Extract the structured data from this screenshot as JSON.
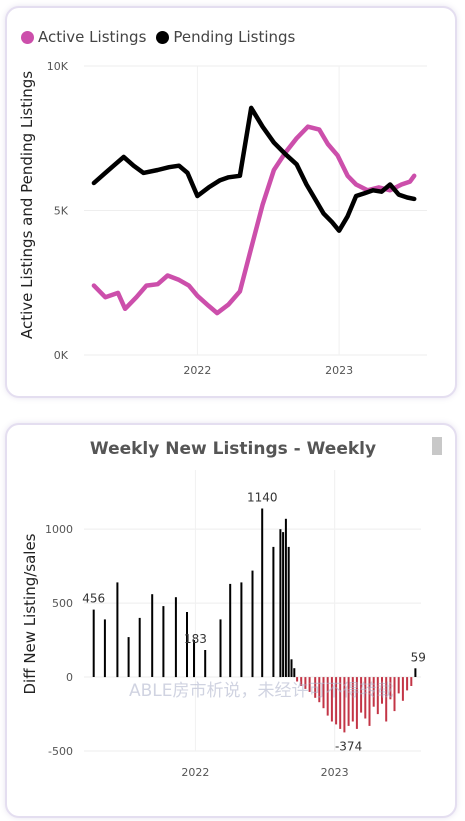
{
  "charts": [
    {
      "type": "line",
      "title": "",
      "legend": [
        {
          "name": "Active Listings",
          "color": "#cc4fab"
        },
        {
          "name": "Pending Listings",
          "color": "#000000"
        }
      ],
      "ylabel": "Active Listings and Pending Listings",
      "yticks": [
        "0K",
        "5K",
        "10K"
      ],
      "ylim": [
        0,
        10000
      ],
      "xticks": [
        {
          "label": "2022",
          "x": 2022.0
        },
        {
          "label": "2023",
          "x": 2023.0
        }
      ],
      "xlim": [
        2021.2,
        2023.62
      ],
      "series": [
        {
          "name": "Active Listings",
          "color": "#cc4fab",
          "points": [
            [
              2021.27,
              2400
            ],
            [
              2021.35,
              2000
            ],
            [
              2021.44,
              2150
            ],
            [
              2021.49,
              1600
            ],
            [
              2021.57,
              2000
            ],
            [
              2021.64,
              2400
            ],
            [
              2021.72,
              2450
            ],
            [
              2021.79,
              2750
            ],
            [
              2021.87,
              2600
            ],
            [
              2021.94,
              2400
            ],
            [
              2022.0,
              2050
            ],
            [
              2022.08,
              1700
            ],
            [
              2022.14,
              1450
            ],
            [
              2022.22,
              1750
            ],
            [
              2022.3,
              2200
            ],
            [
              2022.38,
              3700
            ],
            [
              2022.46,
              5200
            ],
            [
              2022.54,
              6400
            ],
            [
              2022.62,
              7000
            ],
            [
              2022.7,
              7500
            ],
            [
              2022.78,
              7900
            ],
            [
              2022.86,
              7800
            ],
            [
              2022.92,
              7300
            ],
            [
              2022.99,
              6900
            ],
            [
              2023.06,
              6200
            ],
            [
              2023.12,
              5900
            ],
            [
              2023.2,
              5700
            ],
            [
              2023.28,
              5800
            ],
            [
              2023.36,
              5700
            ],
            [
              2023.44,
              5900
            ],
            [
              2023.5,
              6000
            ],
            [
              2023.53,
              6200
            ]
          ]
        },
        {
          "name": "Pending Listings",
          "color": "#000000",
          "points": [
            [
              2021.27,
              5950
            ],
            [
              2021.35,
              6300
            ],
            [
              2021.42,
              6600
            ],
            [
              2021.48,
              6850
            ],
            [
              2021.55,
              6550
            ],
            [
              2021.62,
              6300
            ],
            [
              2021.72,
              6400
            ],
            [
              2021.8,
              6500
            ],
            [
              2021.87,
              6550
            ],
            [
              2021.93,
              6300
            ],
            [
              2022.0,
              5500
            ],
            [
              2022.08,
              5800
            ],
            [
              2022.16,
              6050
            ],
            [
              2022.22,
              6150
            ],
            [
              2022.3,
              6200
            ],
            [
              2022.38,
              8550
            ],
            [
              2022.46,
              7900
            ],
            [
              2022.54,
              7350
            ],
            [
              2022.62,
              6950
            ],
            [
              2022.7,
              6600
            ],
            [
              2022.77,
              5900
            ],
            [
              2022.83,
              5400
            ],
            [
              2022.89,
              4900
            ],
            [
              2022.95,
              4600
            ],
            [
              2023.0,
              4300
            ],
            [
              2023.06,
              4800
            ],
            [
              2023.12,
              5500
            ],
            [
              2023.18,
              5600
            ],
            [
              2023.24,
              5700
            ],
            [
              2023.3,
              5650
            ],
            [
              2023.36,
              5900
            ],
            [
              2023.42,
              5550
            ],
            [
              2023.48,
              5450
            ],
            [
              2023.53,
              5400
            ]
          ]
        }
      ]
    },
    {
      "type": "bar",
      "title": "Weekly New Listings - Weekly",
      "ylabel": "Diff New Listing/sales",
      "yticks": [
        "-500",
        "0",
        "500",
        "1000"
      ],
      "ytick_values": [
        -500,
        0,
        500,
        1000
      ],
      "ylim": [
        -500,
        1400
      ],
      "xticks": [
        {
          "label": "2022",
          "x": 2022.0
        },
        {
          "label": "2023",
          "x": 2023.0
        }
      ],
      "xlim": [
        2021.2,
        2023.62
      ],
      "colors": {
        "positive": "#000000",
        "negative": "#c33546"
      },
      "annotations": [
        {
          "label": "456",
          "x": 2021.27,
          "y": 456
        },
        {
          "label": "183",
          "x": 2022.0,
          "y": 183
        },
        {
          "label": "1140",
          "x": 2022.48,
          "y": 1140
        },
        {
          "label": "-374",
          "x": 2023.1,
          "y": -374
        },
        {
          "label": "59",
          "x": 2023.6,
          "y": 59
        }
      ],
      "bars": [
        [
          2021.27,
          456
        ],
        [
          2021.35,
          390
        ],
        [
          2021.44,
          640
        ],
        [
          2021.52,
          270
        ],
        [
          2021.6,
          400
        ],
        [
          2021.69,
          560
        ],
        [
          2021.77,
          480
        ],
        [
          2021.86,
          540
        ],
        [
          2021.94,
          440
        ],
        [
          2021.99,
          250
        ],
        [
          2022.07,
          183
        ],
        [
          2022.18,
          390
        ],
        [
          2022.25,
          630
        ],
        [
          2022.33,
          640
        ],
        [
          2022.41,
          720
        ],
        [
          2022.48,
          1140
        ],
        [
          2022.56,
          880
        ],
        [
          2022.61,
          1000
        ],
        [
          2022.63,
          980
        ],
        [
          2022.65,
          1070
        ],
        [
          2022.67,
          880
        ],
        [
          2022.69,
          120
        ],
        [
          2022.71,
          60
        ],
        [
          2022.73,
          -30
        ],
        [
          2022.76,
          -60
        ],
        [
          2022.79,
          -80
        ],
        [
          2022.82,
          -100
        ],
        [
          2022.86,
          -140
        ],
        [
          2022.89,
          -170
        ],
        [
          2022.92,
          -210
        ],
        [
          2022.95,
          -260
        ],
        [
          2022.98,
          -300
        ],
        [
          2023.01,
          -320
        ],
        [
          2023.04,
          -350
        ],
        [
          2023.07,
          -374
        ],
        [
          2023.1,
          -330
        ],
        [
          2023.13,
          -300
        ],
        [
          2023.16,
          -350
        ],
        [
          2023.19,
          -240
        ],
        [
          2023.22,
          -280
        ],
        [
          2023.25,
          -330
        ],
        [
          2023.28,
          -200
        ],
        [
          2023.31,
          -250
        ],
        [
          2023.34,
          -180
        ],
        [
          2023.37,
          -300
        ],
        [
          2023.4,
          -150
        ],
        [
          2023.43,
          -230
        ],
        [
          2023.46,
          -110
        ],
        [
          2023.49,
          -160
        ],
        [
          2023.52,
          -90
        ],
        [
          2023.55,
          -60
        ],
        [
          2023.58,
          59
        ]
      ]
    }
  ],
  "watermark": "ABLE房市析说，未经许可不得转载"
}
